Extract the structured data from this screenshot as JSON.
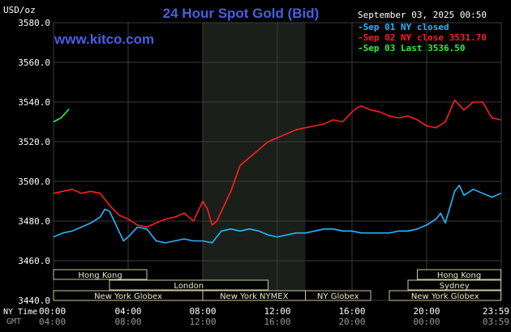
{
  "chart_data": {
    "type": "line",
    "title": "24 Hour Spot Gold (Bid)",
    "ylabel": "USD/oz",
    "watermark": "www.kitco.com",
    "timestamp": "September 03, 2025 00:50",
    "ylim": [
      3440,
      3580
    ],
    "yticks": [
      "3580.0",
      "3560.0",
      "3540.0",
      "3520.0",
      "3500.0",
      "3480.0",
      "3460.0",
      "3440.0"
    ],
    "xlim": [
      0,
      24
    ],
    "ny_time_label": "NY Time",
    "gmt_label": "GMT",
    "ny_ticks": [
      "00:00",
      "04:00",
      "08:00",
      "12:00",
      "16:00",
      "20:00",
      "23:59"
    ],
    "gmt_ticks": [
      "04:00",
      "08:00",
      "12:00",
      "16:00",
      "20:00",
      "00:00",
      "03:59"
    ],
    "legend_position": "top-right",
    "shaded_hours": [
      8,
      13.5
    ],
    "series": [
      {
        "name": "Sep 01 NY closed",
        "color": "#22b8ff",
        "x": [
          0,
          0.5,
          1,
          1.5,
          2,
          2.5,
          2.75,
          3,
          3.25,
          3.5,
          3.75,
          4,
          4.5,
          5,
          5.5,
          6,
          6.5,
          7,
          7.5,
          8,
          8.5,
          9,
          9.5,
          10,
          10.5,
          11,
          11.5,
          12,
          12.5,
          13,
          13.5,
          14,
          14.5,
          15,
          15.5,
          16,
          16.5,
          17,
          17.5,
          18,
          18.5,
          19,
          19.5,
          20,
          20.5,
          20.75,
          21,
          21.25,
          21.5,
          21.75,
          22,
          22.5,
          23,
          23.5,
          23.98
        ],
        "values": [
          3472,
          3474,
          3475,
          3477,
          3479,
          3482,
          3486,
          3485,
          3480,
          3475,
          3470,
          3472,
          3477,
          3476,
          3470,
          3469,
          3470,
          3471,
          3470,
          3470,
          3469,
          3475,
          3476,
          3475,
          3476,
          3475,
          3473,
          3472,
          3473,
          3474,
          3474,
          3475,
          3476,
          3476,
          3475,
          3475,
          3474,
          3474,
          3474,
          3474,
          3475,
          3475,
          3476,
          3478,
          3481,
          3484,
          3479,
          3487,
          3495,
          3498,
          3493,
          3496,
          3494,
          3492,
          3494
        ]
      },
      {
        "name": "Sep 02 NY close 3531.70",
        "color": "#ff1e1e",
        "x": [
          0,
          0.5,
          1,
          1.5,
          2,
          2.5,
          3,
          3.5,
          4,
          4.5,
          5,
          5.5,
          6,
          6.5,
          7,
          7.5,
          8,
          8.25,
          8.5,
          8.75,
          9,
          9.5,
          10,
          10.5,
          11,
          11.5,
          12,
          12.5,
          13,
          13.5,
          14,
          14.5,
          15,
          15.5,
          16,
          16.25,
          16.5,
          17,
          17.5,
          18,
          18.5,
          19,
          19.5,
          20,
          20.5,
          21,
          21.5,
          22,
          22.5,
          23,
          23.5,
          23.98
        ],
        "values": [
          3494,
          3495,
          3496,
          3494,
          3495,
          3494,
          3488,
          3483,
          3481,
          3478,
          3477,
          3479,
          3481,
          3482,
          3484,
          3480,
          3490,
          3486,
          3478,
          3480,
          3485,
          3495,
          3508,
          3512,
          3516,
          3520,
          3522,
          3524,
          3526,
          3527,
          3528,
          3529,
          3531,
          3530,
          3535,
          3537,
          3538,
          3536,
          3535,
          3533,
          3532,
          3533,
          3531,
          3528,
          3527,
          3530,
          3541,
          3536,
          3540,
          3540,
          3532,
          3531
        ]
      },
      {
        "name": "Sep 03 Last 3536.50",
        "color": "#33ee33",
        "x": [
          0,
          0.2,
          0.4,
          0.6,
          0.83
        ],
        "values": [
          3530,
          3531,
          3532,
          3534,
          3536.5
        ]
      }
    ],
    "sessions": [
      {
        "label": "Hong Kong",
        "start": 0,
        "end": 5,
        "row": 0
      },
      {
        "label": "Hong Kong",
        "start": 19.5,
        "end": 23.98,
        "row": 0
      },
      {
        "label": "London",
        "start": 3,
        "end": 11.5,
        "row": 1
      },
      {
        "label": "Sydney",
        "start": 19,
        "end": 23.98,
        "row": 1
      },
      {
        "label": "New York Globex",
        "start": 0,
        "end": 8,
        "row": 2
      },
      {
        "label": "New York NYMEX",
        "start": 8,
        "end": 13.5,
        "row": 2
      },
      {
        "label": "NY Globex",
        "start": 13.5,
        "end": 17,
        "row": 2
      },
      {
        "label": "New York Globex",
        "start": 18,
        "end": 23.98,
        "row": 2
      }
    ]
  }
}
